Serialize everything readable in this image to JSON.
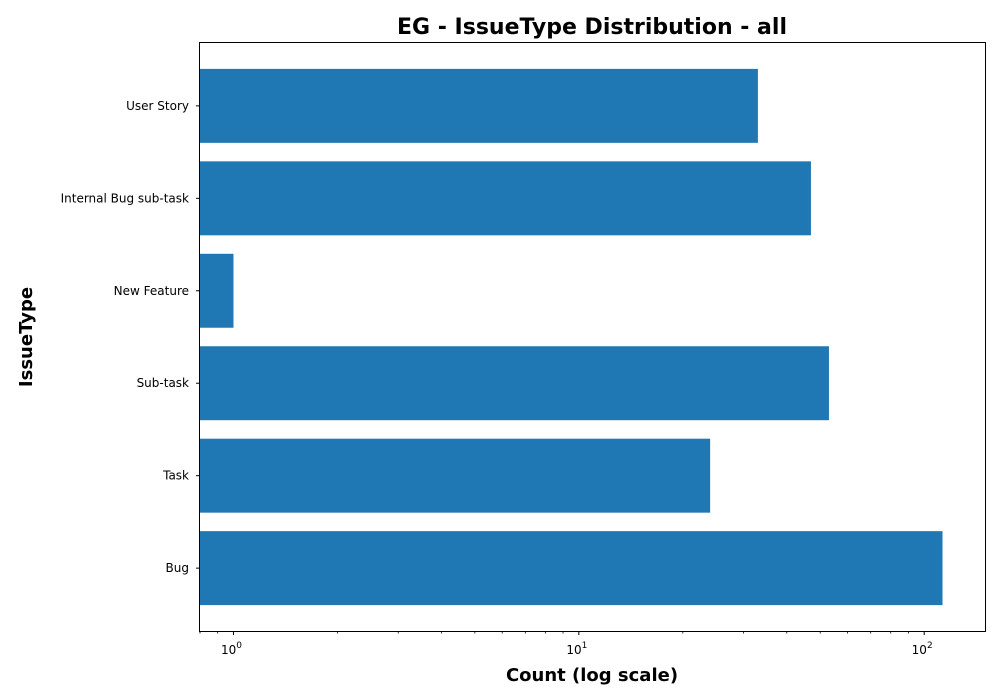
{
  "chart_data": {
    "type": "bar",
    "orientation": "horizontal",
    "title": "EG - IssueType Distribution - all",
    "xlabel": "Count (log scale)",
    "ylabel": "IssueType",
    "x_scale": "log",
    "xlim": [
      0.8,
      150
    ],
    "x_major_ticks": [
      {
        "value": 1,
        "base": "10",
        "exp": "0"
      },
      {
        "value": 10,
        "base": "10",
        "exp": "1"
      },
      {
        "value": 100,
        "base": "10",
        "exp": "2"
      }
    ],
    "categories": [
      "User Story",
      "Internal Bug sub-task",
      "New Feature",
      "Sub-task",
      "Task",
      "Bug"
    ],
    "values": [
      33,
      47,
      1,
      53,
      24,
      113
    ],
    "bar_color": "#1f77b4",
    "grid": false,
    "legend": "none"
  }
}
